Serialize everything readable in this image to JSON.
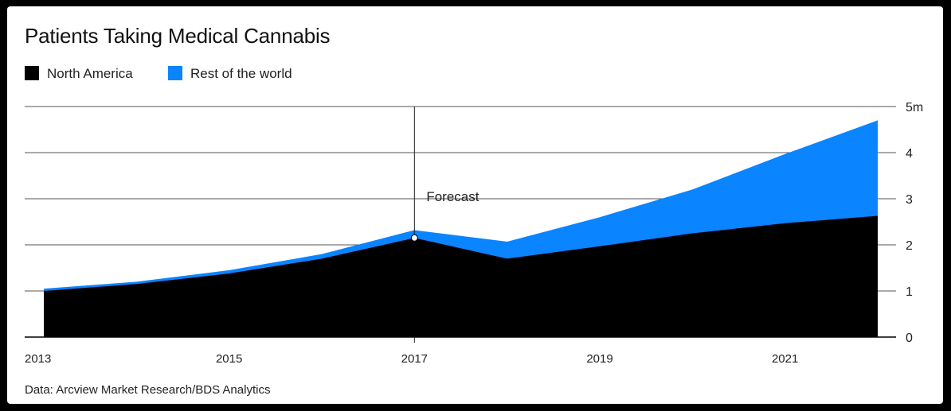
{
  "chart_data": {
    "type": "area",
    "stacked": true,
    "title": "Patients Taking Medical Cannabis",
    "x": [
      2013,
      2014,
      2015,
      2016,
      2017,
      2018,
      2019,
      2020,
      2021,
      2022
    ],
    "series": [
      {
        "name": "North America",
        "color": "#000000",
        "values": [
          1.0,
          1.15,
          1.38,
          1.7,
          2.15,
          1.7,
          1.97,
          2.25,
          2.47,
          2.63
        ]
      },
      {
        "name": "Rest of the world",
        "color": "#0a84ff",
        "values": [
          0.05,
          0.05,
          0.07,
          0.1,
          0.17,
          0.37,
          0.63,
          0.95,
          1.5,
          2.07
        ]
      }
    ],
    "x_ticks": [
      "2013",
      "2015",
      "2017",
      "2019",
      "2021"
    ],
    "x_tick_values": [
      2013,
      2015,
      2017,
      2019,
      2021
    ],
    "y_ticks": [
      "0",
      "1",
      "2",
      "3",
      "4",
      "5m"
    ],
    "y_tick_values": [
      0,
      1,
      2,
      3,
      4,
      5
    ],
    "ylim": [
      0,
      5
    ],
    "y_axis_side": "right",
    "grid": true,
    "legend_position": "top-left",
    "annotation": {
      "text": "Forecast",
      "x": 2017
    }
  },
  "source": "Data: Arcview Market Research/BDS Analytics"
}
